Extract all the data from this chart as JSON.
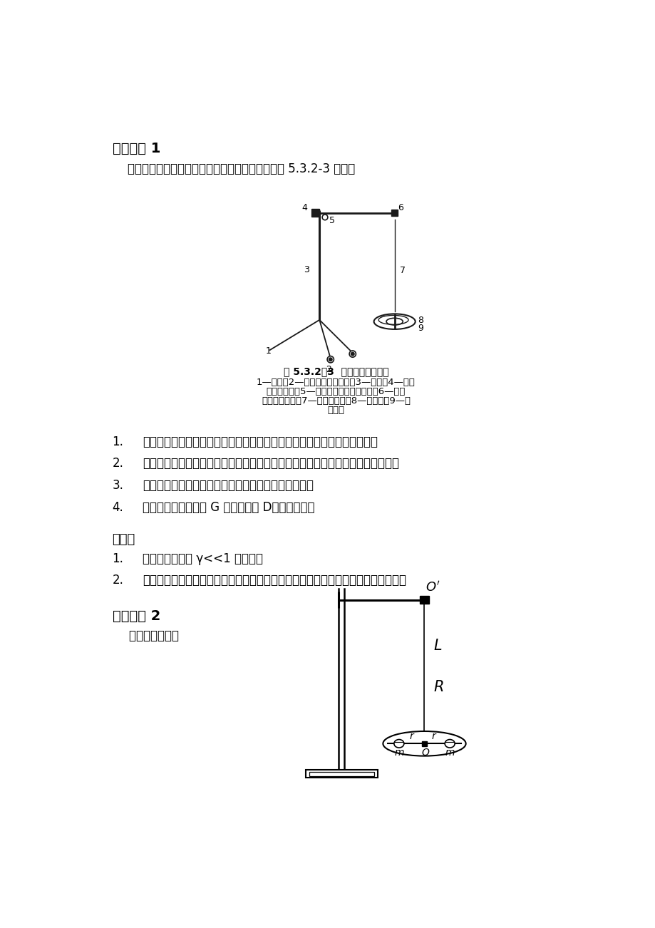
{
  "title1": "实验内容 1",
  "para1": "    实验用扭摆法测量钢丝的切变模量，扭摆装置如图 5.3.2-3 所示。",
  "fig_caption_bold": "图 5.3.2－3  扭摆的结构示意图",
  "fig_caption_lines": [
    "1—底座；2—底座上的调平螺丝；3—支杆；4—固定",
    "横杆的螺母；5—连接支杆和横杆的螺丝；6—固定",
    "金属丝的螺丝；7—待测金属丝；8—金属环；9—金",
    "属悬盘"
  ],
  "steps": [
    "装置扭摆，使钢丝与作为扭摆的圆盘面垂直，圆环应能方便地置于圆盘上。",
    "用螺旋测微器测钢丝直径，用游标卡尺测环的内外径，用米尺测钢丝的有效长度。",
    "写出相对误差公式，据此估算应测多少个周期较合适。",
    "计算钢丝的切变模量 G 和扭转模量 D，分析误差。"
  ],
  "title_skt": "思考题",
  "skt_items": [
    "本实验是否满足 γ<<1 的条件？",
    "为提高测量精度，本实验在设计上作了哪些安排？在具体测量时又要注意什么问题？"
  ],
  "title2": "实验内容 2",
  "subtitle2": "    实验装置如右图",
  "bg_color": "#ffffff"
}
